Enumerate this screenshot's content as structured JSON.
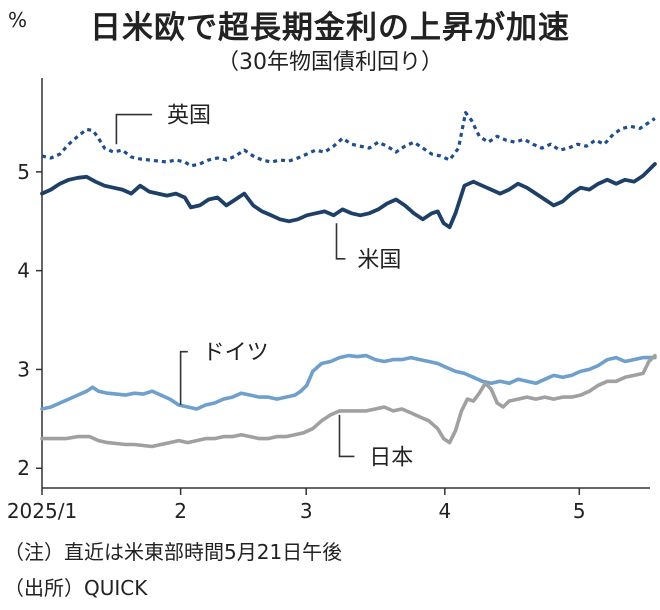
{
  "title": "日米欧で超長期金利の上昇が加速",
  "subtitle": "（30年物国債利回り）",
  "unit": "%",
  "footnotes": [
    "（注）直近は米東部時間5月21日午後",
    "（出所）QUICK"
  ],
  "chart_data": {
    "type": "line",
    "ylim": [
      1.8,
      5.95
    ],
    "yticks": [
      2,
      3,
      4,
      5
    ],
    "x_domain": [
      0,
      100
    ],
    "x_ticks": [
      {
        "label": "2025/1",
        "x": 0
      },
      {
        "label": "2",
        "x": 23.3
      },
      {
        "label": "3",
        "x": 44.4
      },
      {
        "label": "4",
        "x": 67.7
      },
      {
        "label": "5",
        "x": 90.3
      }
    ],
    "series": [
      {
        "name": "英国",
        "color": "#1f4e8c",
        "style": "dotted",
        "width": 3.2,
        "points": [
          [
            0,
            5.16
          ],
          [
            1.5,
            5.14
          ],
          [
            3,
            5.18
          ],
          [
            4.5,
            5.28
          ],
          [
            6,
            5.36
          ],
          [
            7.5,
            5.43
          ],
          [
            8.5,
            5.42
          ],
          [
            9.3,
            5.36
          ],
          [
            10.5,
            5.24
          ],
          [
            12,
            5.2
          ],
          [
            13.5,
            5.22
          ],
          [
            15,
            5.15
          ],
          [
            16.5,
            5.13
          ],
          [
            18,
            5.12
          ],
          [
            19.5,
            5.11
          ],
          [
            21,
            5.1
          ],
          [
            22.5,
            5.12
          ],
          [
            24,
            5.1
          ],
          [
            25,
            5.06
          ],
          [
            26.5,
            5.08
          ],
          [
            28,
            5.12
          ],
          [
            29.5,
            5.14
          ],
          [
            31,
            5.12
          ],
          [
            32.5,
            5.16
          ],
          [
            34,
            5.22
          ],
          [
            35.5,
            5.16
          ],
          [
            37,
            5.12
          ],
          [
            38.5,
            5.1
          ],
          [
            40,
            5.12
          ],
          [
            41.5,
            5.11
          ],
          [
            43,
            5.14
          ],
          [
            44.5,
            5.18
          ],
          [
            46,
            5.22
          ],
          [
            47.5,
            5.2
          ],
          [
            49,
            5.26
          ],
          [
            50.5,
            5.34
          ],
          [
            52,
            5.28
          ],
          [
            53.5,
            5.26
          ],
          [
            55,
            5.24
          ],
          [
            56.5,
            5.3
          ],
          [
            58,
            5.26
          ],
          [
            59.5,
            5.2
          ],
          [
            61,
            5.26
          ],
          [
            62.5,
            5.3
          ],
          [
            64,
            5.24
          ],
          [
            65.5,
            5.18
          ],
          [
            67,
            5.16
          ],
          [
            68.5,
            5.12
          ],
          [
            70,
            5.24
          ],
          [
            71.2,
            5.6
          ],
          [
            72.2,
            5.52
          ],
          [
            73.5,
            5.36
          ],
          [
            75,
            5.3
          ],
          [
            76.5,
            5.36
          ],
          [
            78,
            5.32
          ],
          [
            79.5,
            5.3
          ],
          [
            81,
            5.33
          ],
          [
            82.5,
            5.28
          ],
          [
            84,
            5.24
          ],
          [
            85.5,
            5.28
          ],
          [
            87,
            5.22
          ],
          [
            88.5,
            5.24
          ],
          [
            90,
            5.28
          ],
          [
            91.5,
            5.26
          ],
          [
            93,
            5.32
          ],
          [
            94.5,
            5.28
          ],
          [
            96,
            5.38
          ],
          [
            97.5,
            5.44
          ],
          [
            99,
            5.46
          ],
          [
            100.5,
            5.44
          ],
          [
            102,
            5.5
          ],
          [
            103,
            5.54
          ]
        ]
      },
      {
        "name": "米国",
        "color": "#1e3f66",
        "style": "solid",
        "width": 3.8,
        "points": [
          [
            0,
            4.78
          ],
          [
            1.5,
            4.82
          ],
          [
            3,
            4.88
          ],
          [
            4.5,
            4.92
          ],
          [
            6,
            4.94
          ],
          [
            7.5,
            4.95
          ],
          [
            9,
            4.9
          ],
          [
            10.5,
            4.86
          ],
          [
            12,
            4.84
          ],
          [
            13.5,
            4.82
          ],
          [
            15,
            4.78
          ],
          [
            16.5,
            4.86
          ],
          [
            18,
            4.8
          ],
          [
            19.5,
            4.78
          ],
          [
            21,
            4.76
          ],
          [
            22.5,
            4.78
          ],
          [
            24,
            4.74
          ],
          [
            25,
            4.64
          ],
          [
            26.5,
            4.66
          ],
          [
            28,
            4.72
          ],
          [
            29.5,
            4.74
          ],
          [
            31,
            4.66
          ],
          [
            32.5,
            4.72
          ],
          [
            34,
            4.78
          ],
          [
            35.5,
            4.66
          ],
          [
            37,
            4.6
          ],
          [
            38.5,
            4.56
          ],
          [
            40,
            4.52
          ],
          [
            41.5,
            4.5
          ],
          [
            43,
            4.52
          ],
          [
            44.5,
            4.56
          ],
          [
            46,
            4.58
          ],
          [
            47.5,
            4.6
          ],
          [
            49,
            4.56
          ],
          [
            50.5,
            4.62
          ],
          [
            52,
            4.58
          ],
          [
            53.5,
            4.56
          ],
          [
            55,
            4.58
          ],
          [
            56.5,
            4.62
          ],
          [
            58,
            4.68
          ],
          [
            59.5,
            4.72
          ],
          [
            61,
            4.66
          ],
          [
            62.5,
            4.58
          ],
          [
            64,
            4.52
          ],
          [
            65.5,
            4.58
          ],
          [
            66.5,
            4.6
          ],
          [
            67.5,
            4.48
          ],
          [
            68.5,
            4.44
          ],
          [
            69.5,
            4.58
          ],
          [
            71,
            4.86
          ],
          [
            72.5,
            4.9
          ],
          [
            74,
            4.86
          ],
          [
            75.5,
            4.82
          ],
          [
            77,
            4.78
          ],
          [
            78.5,
            4.82
          ],
          [
            80,
            4.88
          ],
          [
            81.5,
            4.84
          ],
          [
            83,
            4.78
          ],
          [
            84.5,
            4.72
          ],
          [
            86,
            4.66
          ],
          [
            87.5,
            4.7
          ],
          [
            89,
            4.78
          ],
          [
            90.5,
            4.84
          ],
          [
            92,
            4.82
          ],
          [
            93.5,
            4.88
          ],
          [
            95,
            4.92
          ],
          [
            96.5,
            4.88
          ],
          [
            98,
            4.92
          ],
          [
            99.5,
            4.9
          ],
          [
            101,
            4.96
          ],
          [
            103,
            5.08
          ]
        ]
      },
      {
        "name": "ドイツ",
        "color": "#6fa0cc",
        "style": "solid",
        "width": 3.6,
        "points": [
          [
            0,
            2.6
          ],
          [
            1.5,
            2.62
          ],
          [
            3,
            2.66
          ],
          [
            4.5,
            2.7
          ],
          [
            6,
            2.74
          ],
          [
            7.5,
            2.78
          ],
          [
            8.5,
            2.82
          ],
          [
            9.5,
            2.78
          ],
          [
            11,
            2.76
          ],
          [
            12.5,
            2.75
          ],
          [
            14,
            2.74
          ],
          [
            15.5,
            2.76
          ],
          [
            17,
            2.75
          ],
          [
            18.5,
            2.78
          ],
          [
            20,
            2.74
          ],
          [
            21.5,
            2.7
          ],
          [
            23,
            2.64
          ],
          [
            24.5,
            2.62
          ],
          [
            26,
            2.6
          ],
          [
            27.5,
            2.64
          ],
          [
            29,
            2.66
          ],
          [
            30.5,
            2.7
          ],
          [
            32,
            2.72
          ],
          [
            33.5,
            2.76
          ],
          [
            35,
            2.74
          ],
          [
            36.5,
            2.72
          ],
          [
            38,
            2.72
          ],
          [
            39.5,
            2.7
          ],
          [
            41,
            2.72
          ],
          [
            42.5,
            2.74
          ],
          [
            43.5,
            2.78
          ],
          [
            44.5,
            2.84
          ],
          [
            45.5,
            2.98
          ],
          [
            47,
            3.06
          ],
          [
            48.5,
            3.08
          ],
          [
            50,
            3.12
          ],
          [
            51.5,
            3.14
          ],
          [
            53,
            3.13
          ],
          [
            54.5,
            3.14
          ],
          [
            56,
            3.1
          ],
          [
            57.5,
            3.08
          ],
          [
            59,
            3.1
          ],
          [
            60.5,
            3.1
          ],
          [
            62,
            3.12
          ],
          [
            63.5,
            3.1
          ],
          [
            65,
            3.08
          ],
          [
            66.5,
            3.06
          ],
          [
            68,
            3.02
          ],
          [
            69.5,
            2.98
          ],
          [
            71,
            2.96
          ],
          [
            72.5,
            2.92
          ],
          [
            74,
            2.88
          ],
          [
            75.5,
            2.86
          ],
          [
            77,
            2.88
          ],
          [
            78.5,
            2.86
          ],
          [
            80,
            2.9
          ],
          [
            81.5,
            2.88
          ],
          [
            83,
            2.86
          ],
          [
            84.5,
            2.9
          ],
          [
            86,
            2.94
          ],
          [
            87.5,
            2.92
          ],
          [
            89,
            2.94
          ],
          [
            90.5,
            2.98
          ],
          [
            92,
            3.0
          ],
          [
            93.5,
            3.04
          ],
          [
            95,
            3.1
          ],
          [
            96.5,
            3.12
          ],
          [
            98,
            3.08
          ],
          [
            99.5,
            3.1
          ],
          [
            101,
            3.12
          ],
          [
            103,
            3.12
          ]
        ]
      },
      {
        "name": "日本",
        "color": "#a0a0a0",
        "style": "solid",
        "width": 3.6,
        "points": [
          [
            0,
            2.3
          ],
          [
            2,
            2.3
          ],
          [
            4,
            2.3
          ],
          [
            6,
            2.32
          ],
          [
            8,
            2.32
          ],
          [
            9.5,
            2.28
          ],
          [
            11,
            2.26
          ],
          [
            12.5,
            2.25
          ],
          [
            14,
            2.24
          ],
          [
            15.5,
            2.24
          ],
          [
            17,
            2.23
          ],
          [
            18.5,
            2.22
          ],
          [
            20,
            2.24
          ],
          [
            21.5,
            2.26
          ],
          [
            23,
            2.28
          ],
          [
            24.5,
            2.26
          ],
          [
            26,
            2.28
          ],
          [
            27.5,
            2.3
          ],
          [
            29,
            2.3
          ],
          [
            30.5,
            2.32
          ],
          [
            32,
            2.32
          ],
          [
            33.5,
            2.34
          ],
          [
            35,
            2.32
          ],
          [
            36.5,
            2.3
          ],
          [
            38,
            2.3
          ],
          [
            39.5,
            2.32
          ],
          [
            41,
            2.32
          ],
          [
            42.5,
            2.34
          ],
          [
            44,
            2.36
          ],
          [
            45.5,
            2.4
          ],
          [
            47,
            2.48
          ],
          [
            48.5,
            2.54
          ],
          [
            50,
            2.58
          ],
          [
            51.5,
            2.58
          ],
          [
            53,
            2.58
          ],
          [
            54.5,
            2.58
          ],
          [
            56,
            2.6
          ],
          [
            57.5,
            2.62
          ],
          [
            59,
            2.58
          ],
          [
            60.5,
            2.6
          ],
          [
            62,
            2.56
          ],
          [
            63.5,
            2.52
          ],
          [
            65,
            2.48
          ],
          [
            66.5,
            2.4
          ],
          [
            67.5,
            2.3
          ],
          [
            68.5,
            2.26
          ],
          [
            69.5,
            2.38
          ],
          [
            70.5,
            2.58
          ],
          [
            71.5,
            2.7
          ],
          [
            72.5,
            2.68
          ],
          [
            73.5,
            2.76
          ],
          [
            74.5,
            2.86
          ],
          [
            75.5,
            2.8
          ],
          [
            76.5,
            2.66
          ],
          [
            77.5,
            2.62
          ],
          [
            78.5,
            2.68
          ],
          [
            80,
            2.7
          ],
          [
            81.5,
            2.72
          ],
          [
            83,
            2.7
          ],
          [
            84.5,
            2.72
          ],
          [
            86,
            2.7
          ],
          [
            87.5,
            2.72
          ],
          [
            89,
            2.72
          ],
          [
            90.5,
            2.74
          ],
          [
            92,
            2.78
          ],
          [
            93.5,
            2.84
          ],
          [
            95,
            2.88
          ],
          [
            96.5,
            2.88
          ],
          [
            98,
            2.92
          ],
          [
            99.5,
            2.94
          ],
          [
            101,
            2.96
          ],
          [
            102,
            3.08
          ],
          [
            103,
            3.14
          ]
        ]
      }
    ],
    "labels": [
      {
        "series": "英国",
        "text": "英国",
        "x": 21,
        "y": 5.58
      },
      {
        "series": "米国",
        "text": "米国",
        "x": 53,
        "y": 4.12
      },
      {
        "series": "ドイツ",
        "text": "ドイツ",
        "x": 27,
        "y": 3.18
      },
      {
        "series": "日本",
        "text": "日本",
        "x": 55,
        "y": 2.12
      }
    ]
  }
}
